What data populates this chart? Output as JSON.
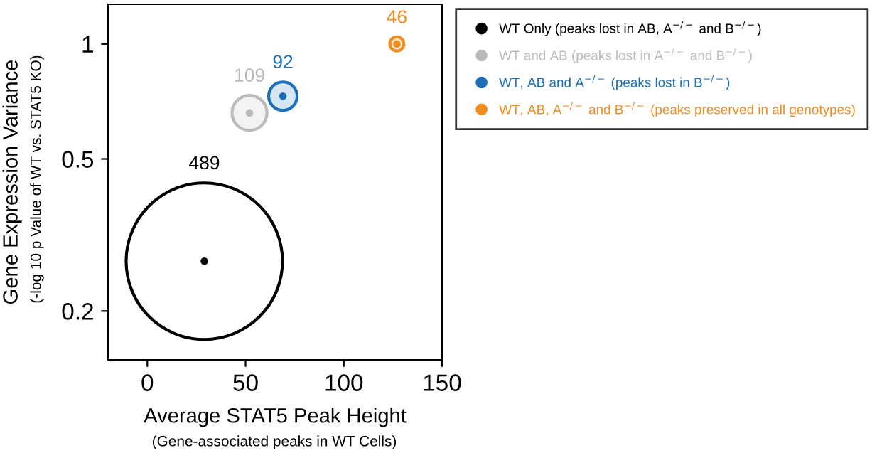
{
  "chart_data": {
    "type": "bubble",
    "xlabel": "Average STAT5 Peak Height",
    "ylabel": "Gene Expression Variance",
    "annotations": [
      "(-log 10 p Value of WT vs. STAT5 KO)",
      "(Gene-associated peaks in WT Cells)",
      "489",
      "109",
      "92",
      "46"
    ],
    "series": [
      {
        "name": "WT Only (peaks lost in AB, A$^{−/−}$ and B$^{−/−}$)",
        "color": "#000000",
        "x": [
          29
        ],
        "values": [
          0.27
        ],
        "sizes": [
          1
        ]
      },
      {
        "name": "WT and AB (peaks lost in A$^{−/−}$ and B$^{−/−}$)",
        "color": "#bbbbbb",
        "x": [
          52
        ],
        "values": [
          0.66
        ],
        "sizes": [
          0.05
        ]
      },
      {
        "name": "WT, AB and A$^{−/−}$ (peaks lost in B$^{−/−}$)",
        "color": "#1a6fb8",
        "x": [
          69
        ],
        "values": [
          0.73
        ],
        "sizes": [
          0.033
        ]
      },
      {
        "name": "WT, AB, A$^{−/−}$ and B$^{−/−}$ (peaks preserved in all genotypes)",
        "color": "#f28c1c",
        "x": [
          127
        ],
        "values": [
          1.0
        ],
        "sizes": [
          0.008
        ]
      }
    ],
    "log": "y",
    "xlim": [
      -20,
      150
    ],
    "ylim": [
      0.149,
      1.27
    ],
    "xticks": [
      0,
      50,
      100,
      150
    ],
    "yticks": [
      0.2,
      0.5,
      1
    ],
    "grid": false,
    "legend": "top right",
    "marker": "circle"
  }
}
